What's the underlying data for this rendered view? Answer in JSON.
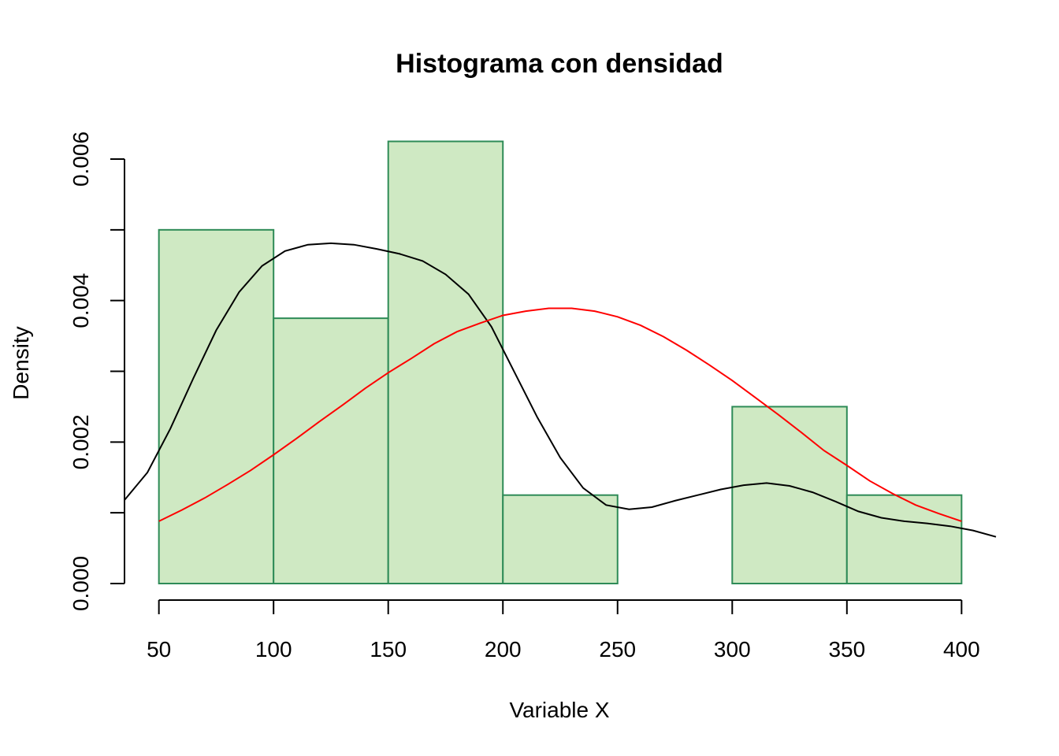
{
  "chart_data": {
    "type": "bar",
    "title": "Histograma con densidad",
    "xlabel": "Variable X",
    "ylabel": "Density",
    "xlim": [
      35,
      415
    ],
    "ylim": [
      0,
      0.006
    ],
    "bin_edges": [
      50,
      100,
      150,
      200,
      250,
      300,
      350,
      400
    ],
    "values": [
      0.005,
      0.00375,
      0.00625,
      0.00125,
      0.0,
      0.0025,
      0.00125
    ],
    "x_ticks": [
      "50",
      "100",
      "150",
      "200",
      "250",
      "300",
      "350",
      "400"
    ],
    "y_ticks": [
      "0.000",
      "0.002",
      "0.004",
      "0.006"
    ],
    "bar_fill": "#cfe9c3",
    "bar_border": "#2e8b57",
    "series": [
      {
        "type": "line",
        "color": "#000000",
        "x": [
          35,
          45,
          55,
          65,
          75,
          85,
          95,
          105,
          115,
          125,
          135,
          145,
          155,
          165,
          175,
          185,
          195,
          205,
          215,
          225,
          235,
          245,
          255,
          265,
          275,
          285,
          295,
          305,
          315,
          325,
          335,
          345,
          355,
          365,
          375,
          385,
          395,
          405,
          415
        ],
        "y": [
          0.00118,
          0.00157,
          0.00219,
          0.0029,
          0.00358,
          0.00412,
          0.00449,
          0.0047,
          0.00479,
          0.00481,
          0.00479,
          0.00473,
          0.00466,
          0.00456,
          0.00437,
          0.00409,
          0.00363,
          0.00299,
          0.00235,
          0.00178,
          0.00135,
          0.00111,
          0.00105,
          0.00108,
          0.00117,
          0.00125,
          0.00133,
          0.00139,
          0.00142,
          0.00138,
          0.00129,
          0.00116,
          0.00102,
          0.00093,
          0.00088,
          0.00085,
          0.00081,
          0.00075,
          0.00066
        ]
      },
      {
        "type": "line",
        "color": "#ff0000",
        "x": [
          50,
          60,
          70,
          80,
          90,
          100,
          110,
          120,
          130,
          140,
          150,
          160,
          170,
          180,
          190,
          200,
          210,
          220,
          230,
          240,
          250,
          260,
          270,
          280,
          290,
          300,
          310,
          320,
          330,
          340,
          350,
          360,
          370,
          380,
          390,
          400
        ],
        "y": [
          0.00088,
          0.00104,
          0.00121,
          0.0014,
          0.0016,
          0.00182,
          0.00205,
          0.00229,
          0.00252,
          0.00276,
          0.00298,
          0.00318,
          0.00339,
          0.00356,
          0.00368,
          0.00379,
          0.00385,
          0.00389,
          0.00389,
          0.00385,
          0.00377,
          0.00365,
          0.00349,
          0.0033,
          0.00309,
          0.00287,
          0.00263,
          0.00239,
          0.00214,
          0.00188,
          0.00167,
          0.00145,
          0.00127,
          0.00111,
          0.00099,
          0.00088
        ]
      }
    ]
  }
}
